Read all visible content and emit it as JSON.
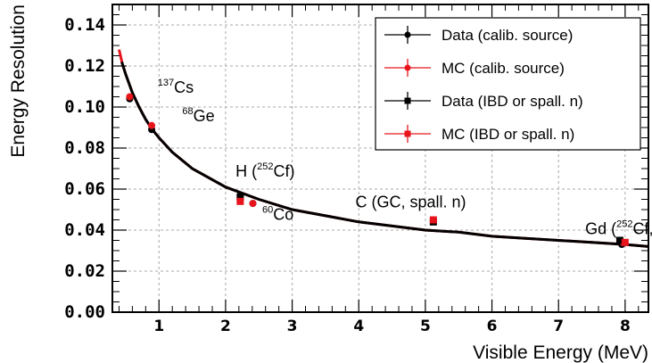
{
  "chart_data": {
    "type": "scatter",
    "xlabel": "Visible Energy (MeV)",
    "ylabel": "Energy Resolution",
    "xlim": [
      0.3,
      8.35
    ],
    "ylim": [
      0.0,
      0.15
    ],
    "x_ticks": [
      1,
      2,
      3,
      4,
      5,
      6,
      7,
      8
    ],
    "y_ticks": [
      0.0,
      0.02,
      0.04,
      0.06,
      0.08,
      0.1,
      0.12,
      0.14
    ],
    "y_tick_labels": [
      "0.00",
      "0.02",
      "0.04",
      "0.06",
      "0.08",
      "0.10",
      "0.12",
      "0.14"
    ],
    "grid": true,
    "legend_position": "top-right",
    "series": [
      {
        "name": "Data (calib. source)",
        "marker": "circle",
        "color": "#000000",
        "points": [
          {
            "x": 0.56,
            "y": 0.104
          },
          {
            "x": 0.89,
            "y": 0.089
          },
          {
            "x": 2.22,
            "y": 0.057
          },
          {
            "x": 2.41,
            "y": 0.053
          },
          {
            "x": 7.95,
            "y": 0.033
          }
        ]
      },
      {
        "name": "MC (calib. source)",
        "marker": "circle",
        "color": "#e8141b",
        "points": [
          {
            "x": 0.56,
            "y": 0.105
          },
          {
            "x": 0.89,
            "y": 0.091
          },
          {
            "x": 2.22,
            "y": 0.055
          },
          {
            "x": 2.41,
            "y": 0.053
          },
          {
            "x": 7.97,
            "y": 0.034
          }
        ]
      },
      {
        "name": "Data (IBD or spall. n)",
        "marker": "square",
        "color": "#000000",
        "points": [
          {
            "x": 2.22,
            "y": 0.056
          },
          {
            "x": 5.12,
            "y": 0.044
          },
          {
            "x": 7.92,
            "y": 0.035
          }
        ]
      },
      {
        "name": "MC (IBD or spall. n)",
        "marker": "square",
        "color": "#e8141b",
        "points": [
          {
            "x": 2.22,
            "y": 0.054
          },
          {
            "x": 5.12,
            "y": 0.045
          },
          {
            "x": 8.0,
            "y": 0.034
          }
        ]
      }
    ],
    "fit_curves": [
      {
        "color": "#e8141b",
        "x_start": 0.4,
        "x_end": 8.35,
        "points": [
          [
            0.4,
            0.128
          ],
          [
            0.45,
            0.121
          ],
          [
            0.5,
            0.116
          ],
          [
            0.6,
            0.107
          ],
          [
            0.7,
            0.1
          ],
          [
            0.8,
            0.094
          ],
          [
            0.9,
            0.089
          ],
          [
            1.0,
            0.085
          ],
          [
            1.2,
            0.078
          ],
          [
            1.5,
            0.07
          ],
          [
            2.0,
            0.061
          ],
          [
            2.5,
            0.055
          ],
          [
            3.0,
            0.05
          ],
          [
            3.5,
            0.047
          ],
          [
            4.0,
            0.044
          ],
          [
            4.5,
            0.042
          ],
          [
            5.0,
            0.04
          ],
          [
            5.5,
            0.039
          ],
          [
            6.0,
            0.037
          ],
          [
            6.5,
            0.036
          ],
          [
            7.0,
            0.035
          ],
          [
            7.5,
            0.034
          ],
          [
            8.0,
            0.033
          ],
          [
            8.35,
            0.032
          ]
        ]
      },
      {
        "color": "#000000",
        "x_start": 0.44,
        "x_end": 8.35,
        "points": [
          [
            0.44,
            0.122
          ],
          [
            0.5,
            0.116
          ],
          [
            0.6,
            0.107
          ],
          [
            0.7,
            0.1
          ],
          [
            0.8,
            0.094
          ],
          [
            0.9,
            0.089
          ],
          [
            1.0,
            0.085
          ],
          [
            1.2,
            0.078
          ],
          [
            1.5,
            0.07
          ],
          [
            2.0,
            0.061
          ],
          [
            2.5,
            0.055
          ],
          [
            3.0,
            0.05
          ],
          [
            3.5,
            0.047
          ],
          [
            4.0,
            0.044
          ],
          [
            4.5,
            0.042
          ],
          [
            5.0,
            0.04
          ],
          [
            5.5,
            0.039
          ],
          [
            6.0,
            0.037
          ],
          [
            6.5,
            0.036
          ],
          [
            7.0,
            0.035
          ],
          [
            7.5,
            0.034
          ],
          [
            8.0,
            0.033
          ],
          [
            8.35,
            0.032
          ]
        ]
      }
    ],
    "annotations": [
      {
        "sup": "137",
        "text": "Cs",
        "x": 0.98,
        "y": 0.107
      },
      {
        "sup": "68",
        "text": "Ge",
        "x": 1.35,
        "y": 0.093
      },
      {
        "text": "H (",
        "sup": "252",
        "text2": "Cf)",
        "x": 2.15,
        "y": 0.066
      },
      {
        "sup": "60",
        "text": "Co",
        "x": 2.55,
        "y": 0.045
      },
      {
        "text": "C (GC, spall. n)",
        "x": 3.95,
        "y": 0.051
      },
      {
        "text": "Gd (",
        "sup": "252",
        "text2": "Cf, ν̅)",
        "x": 7.4,
        "y": 0.038
      }
    ]
  }
}
